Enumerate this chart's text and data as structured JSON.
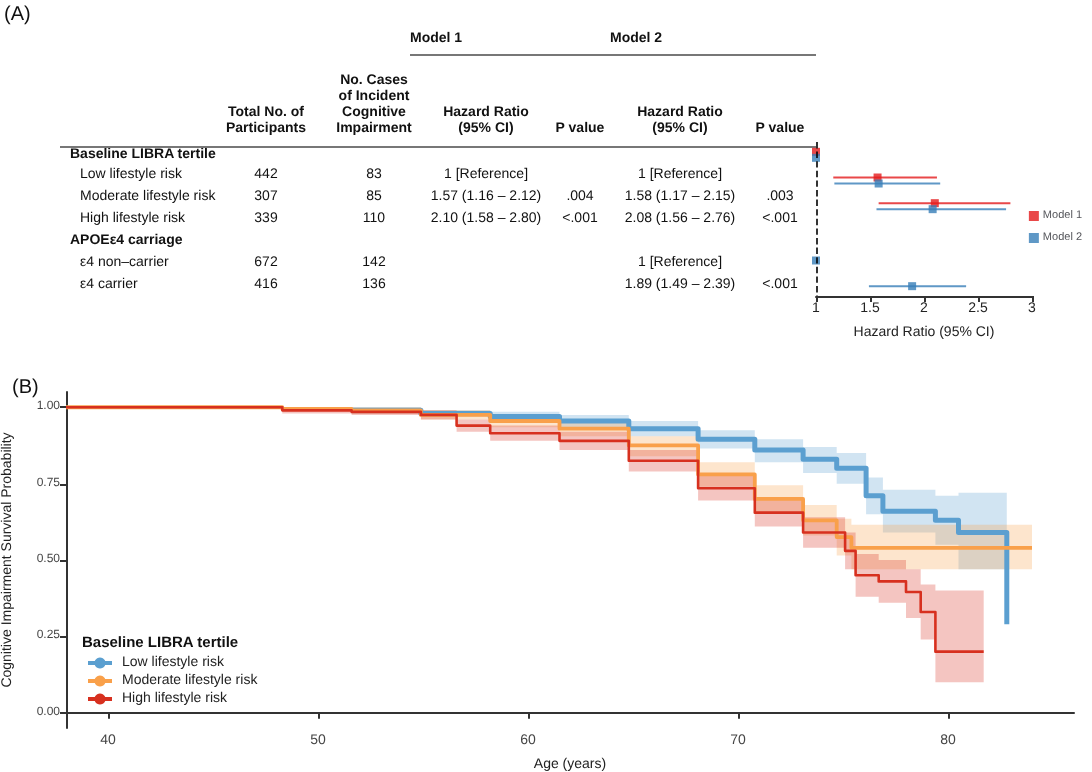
{
  "chart_data": [
    {
      "type": "other",
      "title": "(A)",
      "annotations": [
        "Model 1",
        "Model 2",
        "Total No. of\nParticipants",
        "No. Cases\nof Incident\nCognitive\nImpairment",
        "Hazard Ratio\n(95% CI)",
        "P value",
        "Hazard Ratio\n(95% CI)",
        "P value",
        "Baseline LIBRA tertile",
        "Low lifestyle risk",
        "442",
        "83",
        "1 [Reference]",
        "1 [Reference]",
        "Moderate lifestyle risk",
        "307",
        "85",
        "1.57 (1.16 – 2.12)",
        ".004",
        "1.58 (1.17 – 2.15)",
        ".003",
        "High lifestyle risk",
        "339",
        "110",
        "2.10 (1.58 – 2.80)",
        "<.001",
        "2.08 (1.56 – 2.76)",
        "<.001",
        "APOEε4 carriage",
        "ε4 non–carrier",
        "672",
        "142",
        "1 [Reference]",
        "ε4 carrier",
        "416",
        "136",
        "1.89 (1.49 – 2.39)",
        "<.001"
      ]
    },
    {
      "type": "scatter",
      "orientation": "horizontal",
      "categories": [
        null,
        null,
        null,
        null,
        null,
        null
      ],
      "series": [
        {
          "name": "Model 1",
          "color": "#e41a1c",
          "values": [
            1,
            1.57,
            2.1,
            null,
            null,
            null
          ],
          "errors": [
            null,
            [
              1.16,
              2.12
            ],
            [
              1.58,
              2.8
            ],
            null,
            null,
            null
          ]
        },
        {
          "name": "Model 2",
          "color": "#377eb8",
          "values": [
            1,
            1.58,
            2.08,
            null,
            1,
            1.89
          ],
          "errors": [
            null,
            [
              1.17,
              2.15
            ],
            [
              1.56,
              2.76
            ],
            null,
            null,
            [
              1.49,
              2.39
            ]
          ]
        }
      ],
      "xlim": [
        1,
        3
      ],
      "xticks": [
        1,
        1.5,
        2,
        2.5,
        3
      ],
      "xlabel": "Hazard Ratio (95% CI)",
      "legend": "right",
      "marker": "square",
      "tick_labels": "x",
      "ref_lines": [
        {
          "axis": "x",
          "value": 1,
          "line_style": "dashed"
        }
      ]
    },
    {
      "type": "step",
      "title": "(B)",
      "xlabel": "Age (years)",
      "ylabel": "Cognitive Impairment Survival Probability",
      "legend": "bottom left",
      "legend_title": "Baseline LIBRA tertile",
      "xlim": [
        38,
        86
      ],
      "xticks": [
        40,
        50,
        60,
        70,
        80
      ],
      "ylim": [
        -0.05,
        1.05
      ],
      "yticks": [
        {
          "value": 0,
          "label": "0.00"
        },
        {
          "value": 0.25,
          "label": "0.25"
        },
        {
          "value": 0.5,
          "label": "0.50"
        },
        {
          "value": 0.75,
          "label": "0.75"
        },
        {
          "value": 1,
          "label": "1.00"
        }
      ],
      "series": [
        {
          "name": "Low lifestyle risk",
          "color": "#5b9fd0",
          "x": [
            51.6,
            54.9,
            58.2,
            61.5,
            64.8,
            68.1,
            70.8,
            73.1,
            74.7,
            76.1,
            76.9,
            78.4,
            79.4,
            80.5,
            82.7,
            82.8
          ],
          "values": [
            0.99,
            0.98,
            0.97,
            0.955,
            0.93,
            0.895,
            0.86,
            0.83,
            0.8,
            0.71,
            0.66,
            0.66,
            0.63,
            0.59,
            0.59,
            0.29
          ],
          "lower": [
            0.98,
            0.97,
            0.955,
            0.935,
            0.905,
            0.865,
            0.82,
            0.785,
            0.75,
            0.65,
            0.59,
            0.59,
            0.55,
            0.47,
            0.47,
            null
          ],
          "upper": [
            1,
            0.99,
            0.985,
            0.975,
            0.955,
            0.925,
            0.895,
            0.87,
            0.85,
            0.77,
            0.73,
            0.73,
            0.71,
            0.72,
            0.72,
            null
          ]
        },
        {
          "name": "Moderate lifestyle risk",
          "color": "#f9a04a",
          "x": [
            38,
            45,
            48.3,
            51.6,
            54.9,
            58.2,
            61.5,
            64.8,
            68.1,
            70.8,
            73.1,
            74.7,
            75.4,
            84.0
          ],
          "values": [
            1,
            1,
            0.995,
            0.99,
            0.975,
            0.955,
            0.93,
            0.875,
            0.78,
            0.7,
            0.63,
            0.575,
            0.54,
            0.54
          ],
          "lower": [
            1,
            1,
            0.99,
            0.98,
            0.96,
            0.935,
            0.905,
            0.84,
            0.74,
            0.655,
            0.58,
            0.515,
            0.47,
            0.46
          ],
          "upper": [
            1,
            1,
            1,
            1,
            0.99,
            0.975,
            0.955,
            0.905,
            0.82,
            0.745,
            0.68,
            0.635,
            0.615,
            0.63
          ]
        },
        {
          "name": "High lifestyle risk",
          "color": "#d7301f",
          "x": [
            38,
            45,
            48.3,
            51.6,
            54.9,
            56.6,
            58.2,
            61.5,
            64.8,
            68.1,
            70.8,
            73.1,
            75.1,
            75.6,
            76.7,
            78.0,
            78.7,
            79.4,
            81.7
          ],
          "values": [
            1,
            1,
            0.99,
            0.985,
            0.975,
            0.94,
            0.915,
            0.89,
            0.825,
            0.735,
            0.655,
            0.59,
            0.53,
            0.45,
            0.43,
            0.395,
            0.33,
            0.2,
            0.2
          ],
          "lower": [
            1,
            1,
            0.98,
            0.975,
            0.96,
            0.92,
            0.89,
            0.86,
            0.79,
            0.695,
            0.61,
            0.54,
            0.47,
            0.38,
            0.36,
            0.31,
            0.24,
            0.1,
            0.1
          ],
          "upper": [
            1,
            1,
            1,
            0.995,
            0.99,
            0.96,
            0.94,
            0.92,
            0.86,
            0.775,
            0.7,
            0.64,
            0.59,
            0.52,
            0.5,
            0.47,
            0.42,
            0.4,
            0.4
          ]
        }
      ]
    }
  ]
}
